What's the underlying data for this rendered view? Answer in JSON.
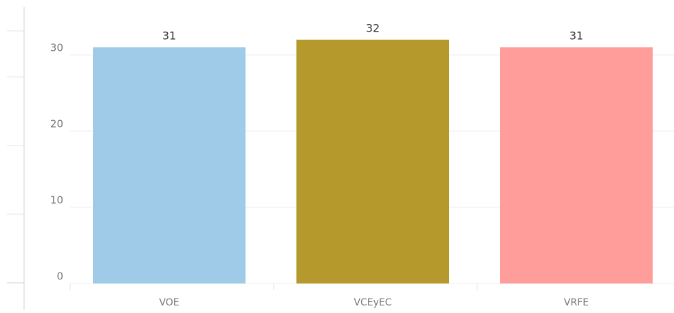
{
  "chart_data": {
    "type": "bar",
    "categories": [
      "VOE",
      "VCEyEC",
      "VRFE"
    ],
    "values": [
      31,
      32,
      31
    ],
    "colors": [
      "#a0cbe8",
      "#b6992d",
      "#ff9d9a"
    ],
    "ylim": [
      0,
      35
    ],
    "yticks": [
      0,
      10,
      20,
      30
    ],
    "grid": true
  }
}
